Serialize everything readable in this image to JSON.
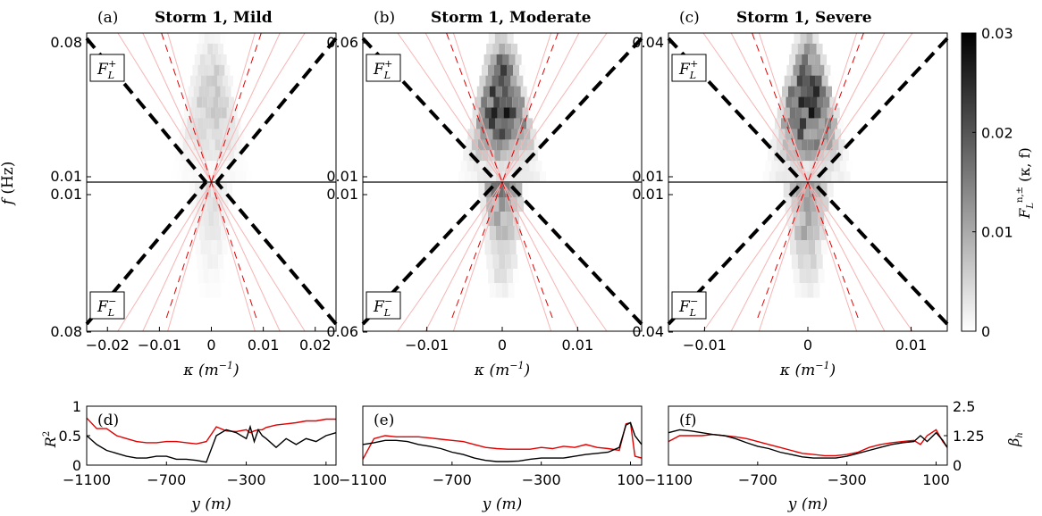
{
  "panels": [
    {
      "letter": "(a)",
      "title": "Storm 1, Mild",
      "f_top": "0.08",
      "f_mid_up": "0.01",
      "f_mid_dn": "0.01",
      "f_bot": "0.08",
      "kmax": 0.024,
      "cone": "mild"
    },
    {
      "letter": "(b)",
      "title": "Storm 1, Moderate",
      "f_top": "0.06",
      "f_mid_up": "0.01",
      "f_mid_dn": "0.01",
      "f_bot": "0.06",
      "kmax": 0.0185,
      "cone": "moderate"
    },
    {
      "letter": "(c)",
      "title": "Storm 1, Severe",
      "f_top": "0.04",
      "f_mid_up": "0.01",
      "f_mid_dn": "0.01",
      "f_bot": "0.04",
      "kmax": 0.0135,
      "cone": "severe"
    }
  ],
  "box_labels": {
    "plus": "F",
    "minus": "F",
    "sub": "L",
    "sup_plus": "+",
    "sup_minus": "−"
  },
  "axis": {
    "ylabel": "f (Hz)",
    "xlabel": "κ (m⁻¹)",
    "kappa": "κ",
    "kappa_unit": "(m",
    "kappa_exp": "−1",
    "close": ")"
  },
  "xticks": [
    [
      "−0.02",
      "−0.01",
      "0",
      "0.01",
      "0.02"
    ],
    [
      "−0.01",
      "0",
      "0.01"
    ],
    [
      "−0.01",
      "0",
      "0.01"
    ]
  ],
  "xtick_vals": [
    [
      -0.02,
      -0.01,
      0,
      0.01,
      0.02
    ],
    [
      -0.01,
      0,
      0.01
    ],
    [
      -0.01,
      0,
      0.01
    ]
  ],
  "colorbar": {
    "ticks": [
      "0.03",
      "0.02",
      "0.01",
      "0"
    ],
    "tick_vals": [
      0.03,
      0.02,
      0.01,
      0
    ],
    "label": "F",
    "label_sub": "L",
    "label_sup": "n,±",
    "label_args": "(κ, f)",
    "range": [
      0,
      0.03
    ]
  },
  "bottom": {
    "letters": [
      "(d)",
      "(e)",
      "(f)"
    ],
    "yleft": {
      "label": "R",
      "exp": "2",
      "ticks": [
        "1",
        "0.5",
        "0"
      ],
      "tick_vals": [
        1,
        0.5,
        0
      ]
    },
    "yright": {
      "label": "β",
      "sub": "h",
      "ticks": [
        "2.5",
        "1.25",
        "0"
      ],
      "tick_vals": [
        2.5,
        1.25,
        0
      ]
    },
    "xticks": [
      "−1100",
      "−700",
      "−300",
      "100"
    ],
    "xtick_vals": [
      -1100,
      -700,
      -300,
      100
    ],
    "xlabel": "y",
    "xunit": "(m)",
    "xrange": [
      -1100,
      150
    ]
  },
  "chart_data": [
    {
      "type": "heatmap",
      "title": "Storm 1, Mild",
      "xlabel": "κ (m⁻¹)",
      "ylabel": "f (Hz)",
      "xlim": [
        -0.024,
        0.024
      ],
      "upper_label": "F_L^+",
      "lower_label": "F_L^-",
      "color_range": [
        0,
        0.03
      ]
    },
    {
      "type": "heatmap",
      "title": "Storm 1, Moderate",
      "xlabel": "κ (m⁻¹)",
      "xlim": [
        -0.0185,
        0.0185
      ],
      "upper_label": "F_L^+",
      "lower_label": "F_L^-",
      "color_range": [
        0,
        0.03
      ]
    },
    {
      "type": "heatmap",
      "title": "Storm 1, Severe",
      "xlabel": "κ (m⁻¹)",
      "xlim": [
        -0.0135,
        0.0135
      ],
      "upper_label": "F_L^+",
      "lower_label": "F_L^-",
      "color_range": [
        0,
        0.03
      ]
    },
    {
      "type": "line",
      "xlabel": "y (m)",
      "ylabel": "R^2",
      "ylim": [
        0,
        1
      ],
      "y2label": "β_h",
      "y2lim": [
        0,
        2.5
      ],
      "x": [
        -1100,
        -1050,
        -1000,
        -950,
        -900,
        -850,
        -800,
        -750,
        -700,
        -650,
        -600,
        -550,
        -500,
        -450,
        -400,
        -350,
        -300,
        -280,
        -260,
        -240,
        -220,
        -200,
        -150,
        -100,
        -50,
        0,
        50,
        100,
        150
      ],
      "series": [
        {
          "color": "#e00000",
          "values": [
            0.8,
            0.62,
            0.62,
            0.5,
            0.45,
            0.4,
            0.38,
            0.38,
            0.4,
            0.4,
            0.38,
            0.36,
            0.4,
            0.65,
            0.58,
            0.57,
            0.6,
            0.55,
            0.58,
            0.6,
            0.6,
            0.64,
            0.68,
            0.7,
            0.72,
            0.75,
            0.75,
            0.78,
            0.78
          ]
        },
        {
          "color": "#000000",
          "values": [
            0.5,
            0.35,
            0.25,
            0.2,
            0.15,
            0.12,
            0.12,
            0.15,
            0.15,
            0.1,
            0.1,
            0.08,
            0.05,
            0.5,
            0.6,
            0.55,
            0.45,
            0.65,
            0.4,
            0.6,
            0.5,
            0.45,
            0.3,
            0.45,
            0.35,
            0.45,
            0.4,
            0.5,
            0.55
          ]
        }
      ]
    },
    {
      "type": "line",
      "xlabel": "y (m)",
      "ylim": [
        0,
        1
      ],
      "y2lim": [
        0,
        2.5
      ],
      "x": [
        -1100,
        -1050,
        -1000,
        -950,
        -900,
        -850,
        -800,
        -750,
        -700,
        -650,
        -600,
        -550,
        -500,
        -450,
        -400,
        -350,
        -300,
        -250,
        -200,
        -150,
        -100,
        -50,
        0,
        50,
        80,
        100,
        120,
        150
      ],
      "series": [
        {
          "color": "#e00000",
          "values": [
            0.1,
            0.45,
            0.5,
            0.48,
            0.48,
            0.48,
            0.46,
            0.44,
            0.42,
            0.4,
            0.35,
            0.3,
            0.28,
            0.27,
            0.27,
            0.27,
            0.3,
            0.28,
            0.32,
            0.3,
            0.35,
            0.3,
            0.28,
            0.25,
            0.7,
            0.72,
            0.15,
            0.12
          ]
        },
        {
          "color": "#000000",
          "values": [
            0.35,
            0.38,
            0.42,
            0.42,
            0.4,
            0.35,
            0.32,
            0.28,
            0.22,
            0.18,
            0.12,
            0.08,
            0.06,
            0.06,
            0.07,
            0.1,
            0.12,
            0.12,
            0.12,
            0.15,
            0.18,
            0.2,
            0.22,
            0.3,
            0.68,
            0.72,
            0.5,
            0.35
          ]
        }
      ]
    },
    {
      "type": "line",
      "xlabel": "y (m)",
      "ylim": [
        0,
        1
      ],
      "y2lim": [
        0,
        2.5
      ],
      "x": [
        -1100,
        -1050,
        -1000,
        -950,
        -900,
        -850,
        -800,
        -750,
        -700,
        -650,
        -600,
        -550,
        -500,
        -450,
        -400,
        -350,
        -300,
        -250,
        -200,
        -150,
        -100,
        -50,
        0,
        30,
        60,
        100,
        130,
        150
      ],
      "series": [
        {
          "color": "#e00000",
          "values": [
            0.4,
            0.5,
            0.5,
            0.5,
            0.52,
            0.5,
            0.48,
            0.45,
            0.4,
            0.35,
            0.3,
            0.25,
            0.2,
            0.18,
            0.16,
            0.16,
            0.18,
            0.22,
            0.3,
            0.35,
            0.38,
            0.4,
            0.42,
            0.35,
            0.5,
            0.6,
            0.4,
            0.3
          ]
        },
        {
          "color": "#000000",
          "values": [
            0.55,
            0.6,
            0.58,
            0.55,
            0.52,
            0.5,
            0.45,
            0.38,
            0.32,
            0.28,
            0.22,
            0.18,
            0.14,
            0.12,
            0.12,
            0.12,
            0.15,
            0.2,
            0.25,
            0.3,
            0.35,
            0.38,
            0.4,
            0.5,
            0.4,
            0.55,
            0.42,
            0.3
          ]
        }
      ]
    }
  ]
}
